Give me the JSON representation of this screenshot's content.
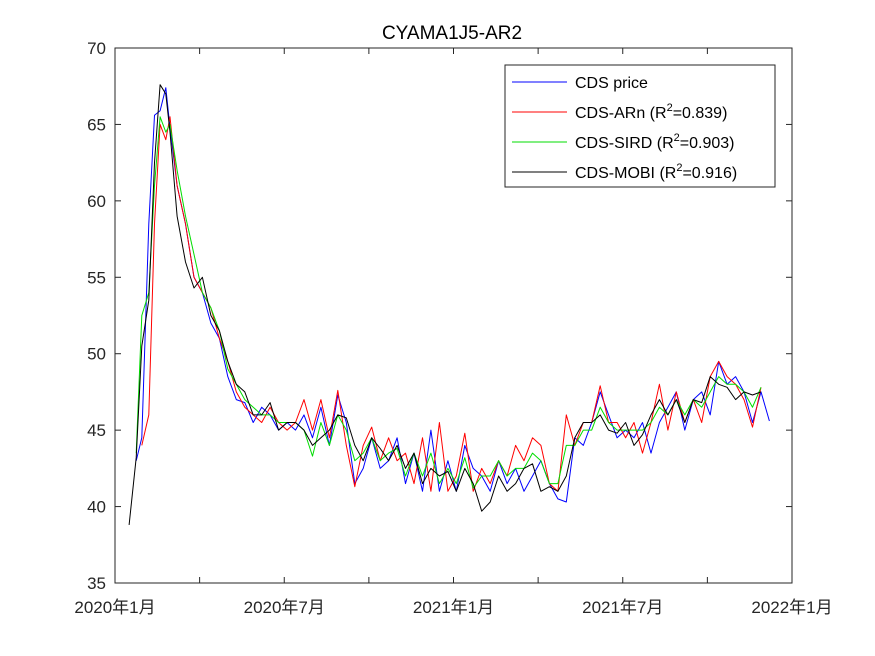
{
  "chart_data": {
    "type": "line",
    "title": "CYAMA1J5-AR2",
    "xlabel": "",
    "ylabel": "",
    "ylim": [
      35,
      70
    ],
    "yticks": [
      35,
      40,
      45,
      50,
      55,
      60,
      65,
      70
    ],
    "xlim_months": [
      0,
      24
    ],
    "xticks": [
      {
        "pos": 0,
        "label": "2020年1月"
      },
      {
        "pos": 6,
        "label": "2020年7月"
      },
      {
        "pos": 12,
        "label": "2021年1月"
      },
      {
        "pos": 18,
        "label": "2021年7月"
      },
      {
        "pos": 24,
        "label": "2022年1月"
      }
    ],
    "x_minor_ticks": [
      3,
      9,
      15,
      21
    ],
    "legend_position": "top-right",
    "series": [
      {
        "name": "CDS price",
        "legend_label": "CDS price",
        "r2": "",
        "color": "#0000ff",
        "x": [
          0.5,
          0.75,
          0.95,
          1.2,
          1.4,
          1.6,
          1.8,
          1.95,
          2.2,
          2.5,
          2.8,
          3.1,
          3.4,
          3.7,
          4.0,
          4.3,
          4.6,
          4.9,
          5.2,
          5.5,
          5.8,
          6.1,
          6.4,
          6.7,
          7.0,
          7.3,
          7.6,
          7.9,
          8.2,
          8.5,
          8.8,
          9.1,
          9.4,
          9.7,
          10.0,
          10.3,
          10.6,
          10.9,
          11.2,
          11.5,
          11.8,
          12.1,
          12.4,
          12.7,
          13.0,
          13.3,
          13.6,
          13.9,
          14.2,
          14.5,
          14.8,
          15.1,
          15.4,
          15.7,
          16.0,
          16.3,
          16.6,
          16.9,
          17.2,
          17.5,
          17.8,
          18.1,
          18.4,
          18.7,
          19.0,
          19.3,
          19.6,
          19.9,
          20.2,
          20.5,
          20.8,
          21.1,
          21.4,
          21.7,
          22.0,
          22.3,
          22.6,
          22.9,
          23.2
        ],
        "values": [
          null,
          43.0,
          44.5,
          58.5,
          65.6,
          65.9,
          67.4,
          64.8,
          61.0,
          58.5,
          55.0,
          54.0,
          52.0,
          51.0,
          48.5,
          47.0,
          46.8,
          45.5,
          46.5,
          46.0,
          45.0,
          45.5,
          45.0,
          46.0,
          44.5,
          46.5,
          44.0,
          47.3,
          45.5,
          41.5,
          42.5,
          44.5,
          42.5,
          43.0,
          44.5,
          41.5,
          43.5,
          41.0,
          45.0,
          41.0,
          43.0,
          41.0,
          44.0,
          42.5,
          42.0,
          41.0,
          43.0,
          41.5,
          42.5,
          41.0,
          42.0,
          43.0,
          41.5,
          40.5,
          40.3,
          44.5,
          44.0,
          45.5,
          47.5,
          46.0,
          44.5,
          45.0,
          44.5,
          45.5,
          43.5,
          45.5,
          46.5,
          47.5,
          45.0,
          47.0,
          47.5,
          46.0,
          49.5,
          48.0,
          48.5,
          47.5,
          45.5,
          47.5,
          45.6
        ]
      },
      {
        "name": "CDS-ARn",
        "legend_label": "CDS-ARn   (R",
        "r2": "=0.839)",
        "color": "#ff0000",
        "x": [
          0.5,
          0.75,
          0.95,
          1.2,
          1.4,
          1.6,
          1.8,
          1.95,
          2.2,
          2.5,
          2.8,
          3.1,
          3.4,
          3.7,
          4.0,
          4.3,
          4.6,
          4.9,
          5.2,
          5.5,
          5.8,
          6.1,
          6.4,
          6.7,
          7.0,
          7.3,
          7.6,
          7.9,
          8.2,
          8.5,
          8.8,
          9.1,
          9.4,
          9.7,
          10.0,
          10.3,
          10.6,
          10.9,
          11.2,
          11.5,
          11.8,
          12.1,
          12.4,
          12.7,
          13.0,
          13.3,
          13.6,
          13.9,
          14.2,
          14.5,
          14.8,
          15.1,
          15.4,
          15.7,
          16.0,
          16.3,
          16.6,
          16.9,
          17.2,
          17.5,
          17.8,
          18.1,
          18.4,
          18.7,
          19.0,
          19.3,
          19.6,
          19.9,
          20.2,
          20.5,
          20.8,
          21.1,
          21.4,
          21.7,
          22.0,
          22.3,
          22.6,
          22.9,
          23.2
        ],
        "values": [
          null,
          null,
          44.0,
          46.0,
          58.5,
          65.0,
          64.0,
          65.5,
          61.0,
          58.5,
          55.0,
          54.0,
          53.0,
          51.0,
          49.5,
          47.5,
          46.5,
          46.0,
          45.5,
          46.5,
          45.5,
          45.0,
          45.5,
          47.0,
          45.0,
          47.0,
          44.5,
          47.6,
          44.0,
          41.3,
          44.0,
          45.2,
          43.0,
          44.5,
          43.0,
          43.5,
          41.5,
          44.5,
          41.0,
          45.5,
          41.0,
          42.0,
          44.8,
          41.0,
          42.5,
          41.5,
          43.0,
          42.0,
          44.0,
          43.0,
          44.5,
          44.0,
          41.5,
          41.0,
          46.0,
          44.0,
          45.5,
          45.5,
          47.9,
          45.5,
          45.5,
          44.5,
          45.5,
          43.5,
          45.5,
          48.0,
          45.0,
          47.5,
          45.5,
          47.0,
          45.5,
          48.5,
          49.5,
          48.5,
          48.0,
          47.0,
          45.2,
          47.8,
          null
        ]
      },
      {
        "name": "CDS-SIRD",
        "legend_label": "CDS-SIRD (R",
        "r2": "=0.903)",
        "color": "#00dd00",
        "x": [
          0.5,
          0.75,
          0.95,
          1.2,
          1.4,
          1.6,
          1.8,
          1.95,
          2.2,
          2.5,
          2.8,
          3.1,
          3.4,
          3.7,
          4.0,
          4.3,
          4.6,
          4.9,
          5.2,
          5.5,
          5.8,
          6.1,
          6.4,
          6.7,
          7.0,
          7.3,
          7.6,
          7.9,
          8.2,
          8.5,
          8.8,
          9.1,
          9.4,
          9.7,
          10.0,
          10.3,
          10.6,
          10.9,
          11.2,
          11.5,
          11.8,
          12.1,
          12.4,
          12.7,
          13.0,
          13.3,
          13.6,
          13.9,
          14.2,
          14.5,
          14.8,
          15.1,
          15.4,
          15.7,
          16.0,
          16.3,
          16.6,
          16.9,
          17.2,
          17.5,
          17.8,
          18.1,
          18.4,
          18.7,
          19.0,
          19.3,
          19.6,
          19.9,
          20.2,
          20.5,
          20.8,
          21.1,
          21.4,
          21.7,
          22.0,
          22.3,
          22.6,
          22.9,
          23.2
        ],
        "values": [
          null,
          43.5,
          52.5,
          54.0,
          61.0,
          65.5,
          64.5,
          65.0,
          62.0,
          59.0,
          56.5,
          54.0,
          53.0,
          51.5,
          49.0,
          48.0,
          47.0,
          46.5,
          46.0,
          46.0,
          45.5,
          45.5,
          45.5,
          45.0,
          43.3,
          45.5,
          44.0,
          46.0,
          45.0,
          43.0,
          43.5,
          44.5,
          43.0,
          43.5,
          43.8,
          42.0,
          43.5,
          42.0,
          43.5,
          41.5,
          42.5,
          41.5,
          43.2,
          41.2,
          42.0,
          42.0,
          43.0,
          42.0,
          42.5,
          42.5,
          43.5,
          43.0,
          41.5,
          41.5,
          44.0,
          44.0,
          45.0,
          45.0,
          46.5,
          45.5,
          45.0,
          45.0,
          45.0,
          45.0,
          45.5,
          46.5,
          46.0,
          47.0,
          46.0,
          47.0,
          46.5,
          47.5,
          48.5,
          48.0,
          48.0,
          47.5,
          46.5,
          47.8,
          null
        ]
      },
      {
        "name": "CDS-MOBI",
        "legend_label": "CDS-MOBI (R",
        "r2": "=0.916)",
        "color": "#000000",
        "x": [
          0.5,
          0.75,
          0.95,
          1.2,
          1.4,
          1.6,
          1.8,
          1.95,
          2.2,
          2.5,
          2.8,
          3.1,
          3.4,
          3.7,
          4.0,
          4.3,
          4.6,
          4.9,
          5.2,
          5.5,
          5.8,
          6.1,
          6.4,
          6.7,
          7.0,
          7.3,
          7.6,
          7.9,
          8.2,
          8.5,
          8.8,
          9.1,
          9.4,
          9.7,
          10.0,
          10.3,
          10.6,
          10.9,
          11.2,
          11.5,
          11.8,
          12.1,
          12.4,
          12.7,
          13.0,
          13.3,
          13.6,
          13.9,
          14.2,
          14.5,
          14.8,
          15.1,
          15.4,
          15.7,
          16.0,
          16.3,
          16.6,
          16.9,
          17.2,
          17.5,
          17.8,
          18.1,
          18.4,
          18.7,
          19.0,
          19.3,
          19.6,
          19.9,
          20.2,
          20.5,
          20.8,
          21.1,
          21.4,
          21.7,
          22.0,
          22.3,
          22.6,
          22.9,
          23.2
        ],
        "values": [
          38.8,
          43.2,
          50.5,
          53.5,
          62.5,
          67.6,
          67.0,
          64.5,
          59.0,
          56.0,
          54.3,
          55.0,
          52.5,
          51.5,
          49.5,
          48.0,
          47.5,
          46.0,
          46.0,
          46.8,
          45.0,
          45.5,
          45.5,
          45.0,
          44.0,
          44.5,
          45.0,
          46.0,
          45.8,
          44.0,
          43.0,
          44.5,
          43.8,
          43.0,
          44.0,
          42.5,
          43.5,
          41.5,
          42.5,
          42.0,
          42.3,
          41.0,
          42.5,
          41.5,
          39.7,
          40.3,
          42.0,
          41.0,
          41.5,
          42.5,
          42.8,
          41.0,
          41.3,
          41.0,
          42.0,
          44.5,
          45.5,
          45.5,
          46.0,
          45.0,
          44.8,
          45.5,
          44.0,
          44.7,
          46.0,
          47.0,
          46.0,
          47.0,
          45.5,
          47.0,
          46.8,
          48.5,
          48.0,
          47.8,
          47.0,
          47.5,
          47.3,
          47.5,
          null
        ]
      }
    ]
  }
}
